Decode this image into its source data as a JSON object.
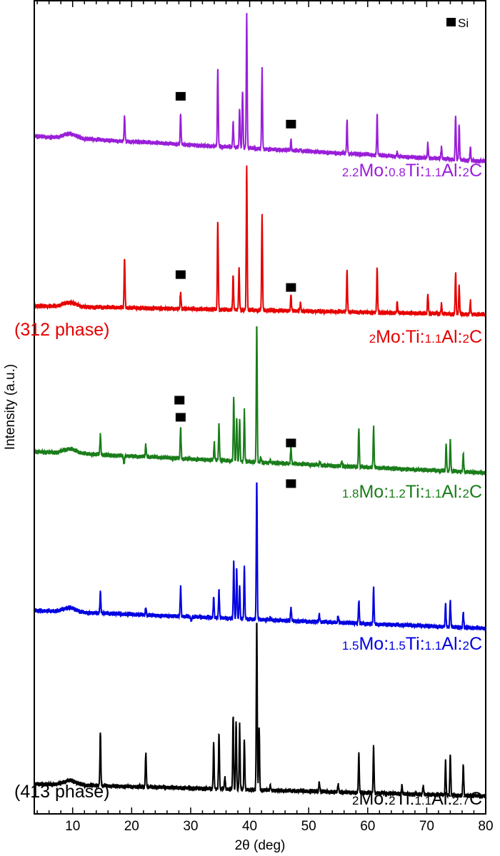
{
  "chart_data": {
    "type": "line",
    "xlabel": "2θ (deg)",
    "ylabel": "Intensity (a.u.)",
    "xlim": [
      3.5,
      80
    ],
    "ylim": [
      0,
      114
    ],
    "xticks": [
      10,
      20,
      30,
      40,
      50,
      60,
      70,
      80
    ],
    "grid": false,
    "legend": {
      "position": "top-right",
      "entries": [
        {
          "marker": "filled-square",
          "label": "Si"
        }
      ]
    },
    "series": [
      {
        "name": "2.2Mo:0.8Ti:1.1Al:2C",
        "color": "#9a1ed8",
        "baseline": [
          95,
          91.5
        ],
        "peaks": [
          [
            18.8,
            97.8
          ],
          [
            28.3,
            98.2
          ],
          [
            34.6,
            104.5
          ],
          [
            35.6,
            93.5
          ],
          [
            37.2,
            97
          ],
          [
            38.3,
            99
          ],
          [
            38.8,
            101.5
          ],
          [
            39.5,
            112.2
          ],
          [
            42.1,
            104.5
          ],
          [
            47,
            94.5
          ],
          [
            48.6,
            93.2
          ],
          [
            56.5,
            97.3
          ],
          [
            61.6,
            98
          ],
          [
            65,
            92.7
          ],
          [
            70.2,
            94
          ],
          [
            72.5,
            93.5
          ],
          [
            74.9,
            98
          ],
          [
            75.5,
            96.5
          ],
          [
            77.4,
            93.5
          ]
        ],
        "si_markers": [
          [
            28.3,
            100.6
          ],
          [
            47,
            96.7
          ]
        ]
      },
      {
        "name": "2Mo:Ti:1.1Al:2C",
        "color": "#e60000",
        "baseline": [
          71.2,
          70
        ],
        "annotation": "(312 phase)",
        "peaks": [
          [
            18.8,
            78
          ],
          [
            28.3,
            73.2
          ],
          [
            34.6,
            83.2
          ],
          [
            37.2,
            75.5
          ],
          [
            38.2,
            76.5
          ],
          [
            39.5,
            91
          ],
          [
            42.1,
            84
          ],
          [
            47,
            72.8
          ],
          [
            48.6,
            71.7
          ],
          [
            56.5,
            76.2
          ],
          [
            61.6,
            76.5
          ],
          [
            65,
            71.8
          ],
          [
            70.2,
            73
          ],
          [
            72.5,
            71.5
          ],
          [
            74.9,
            76
          ],
          [
            75.5,
            74
          ],
          [
            77.4,
            71.8
          ]
        ],
        "si_markers": [
          [
            28.3,
            75.6
          ],
          [
            47,
            73.8
          ]
        ]
      },
      {
        "name": "1.8Mo:1.2Ti:1.1Al:2C",
        "color": "#1a7d1a",
        "baseline": [
          50.8,
          47.8
        ],
        "peaks": [
          [
            14.7,
            53.2
          ],
          [
            18.7,
            49
          ],
          [
            22.4,
            51.8
          ],
          [
            28.3,
            54.4
          ],
          [
            34,
            52
          ],
          [
            34.8,
            54.7
          ],
          [
            37.3,
            58.5
          ],
          [
            37.8,
            55.7
          ],
          [
            38.3,
            55.5
          ],
          [
            39.1,
            56.5
          ],
          [
            41.2,
            69
          ],
          [
            41.9,
            50
          ],
          [
            43.5,
            49.5
          ],
          [
            47,
            51.5
          ],
          [
            51.9,
            49.5
          ],
          [
            55.6,
            49.5
          ],
          [
            58.5,
            54.2
          ],
          [
            61,
            54.3
          ],
          [
            73.3,
            52
          ],
          [
            74,
            52.5
          ],
          [
            76.2,
            50.5
          ]
        ],
        "si_markers": [
          [
            28.3,
            55.6
          ],
          [
            47,
            52
          ]
        ]
      },
      {
        "name": "1.5Mo:1.5Ti:1.1Al:2C",
        "color": "#0000e0",
        "baseline": [
          28.5,
          26
        ],
        "peaks": [
          [
            14.7,
            31.2
          ],
          [
            22.4,
            29
          ],
          [
            28.3,
            32
          ],
          [
            30.1,
            27
          ],
          [
            33.9,
            30.5
          ],
          [
            34.8,
            31.5
          ],
          [
            37.3,
            35.5
          ],
          [
            37.8,
            34.5
          ],
          [
            38.3,
            32
          ],
          [
            39.1,
            34.7
          ],
          [
            41.2,
            47.2
          ],
          [
            43.5,
            27.5
          ],
          [
            45,
            27
          ],
          [
            47,
            29
          ],
          [
            51.8,
            28
          ],
          [
            55,
            27.8
          ],
          [
            58.5,
            30
          ],
          [
            61,
            31.8
          ],
          [
            65.8,
            26.5
          ],
          [
            73.2,
            29.5
          ],
          [
            74,
            30
          ],
          [
            76.2,
            28.3
          ]
        ],
        "si_markers": [
          [
            28.1,
            58
          ],
          [
            47,
            46.3
          ]
        ]
      },
      {
        "name": "2Mo:2Ti:1.1Al:2.7C",
        "color": "#000000",
        "baseline": [
          4.2,
          2.5
        ],
        "annotation": "(413 phase)",
        "peaks": [
          [
            14.7,
            11.5
          ],
          [
            22.4,
            8.7
          ],
          [
            33.9,
            10
          ],
          [
            34.8,
            11.5
          ],
          [
            35.8,
            5.2
          ],
          [
            37.2,
            14
          ],
          [
            37.7,
            13.2
          ],
          [
            38.3,
            12.5
          ],
          [
            39.1,
            10.5
          ],
          [
            41.2,
            27.5
          ],
          [
            41.6,
            12.5
          ],
          [
            43.5,
            4
          ],
          [
            51.8,
            4.5
          ],
          [
            55,
            4.2
          ],
          [
            58.5,
            8.5
          ],
          [
            61,
            9.5
          ],
          [
            65.8,
            4
          ],
          [
            69.4,
            4
          ],
          [
            73.2,
            7.5
          ],
          [
            74,
            8.5
          ],
          [
            76.2,
            7
          ]
        ],
        "si_markers": []
      }
    ]
  }
}
